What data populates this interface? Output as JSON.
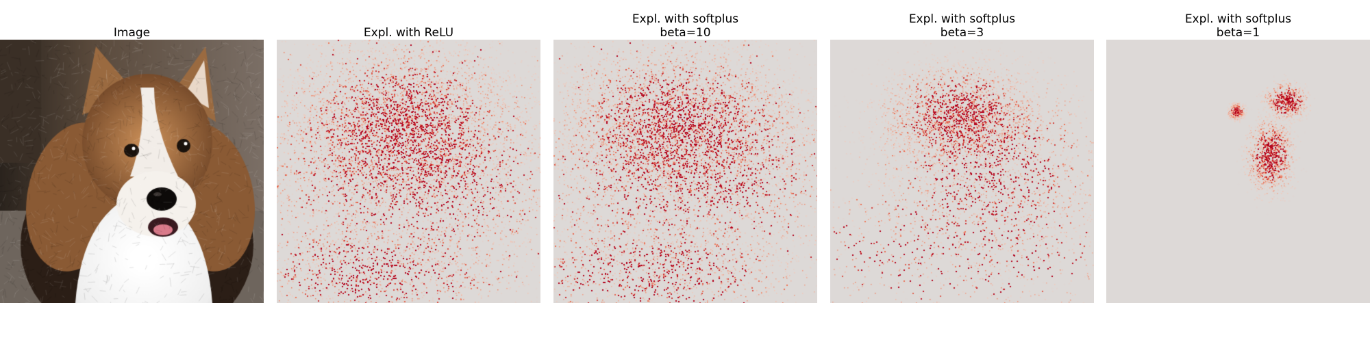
{
  "figure": {
    "panels": [
      {
        "title": "Image",
        "kind": "photo",
        "content": "sheltie dog portrait"
      },
      {
        "title": "Expl. with ReLU",
        "kind": "heatmap",
        "density": 1.0,
        "spread": "wide"
      },
      {
        "title": "Expl. with softplus\nbeta=10",
        "kind": "heatmap",
        "density": 0.95,
        "spread": "wide"
      },
      {
        "title": "Expl. with softplus\nbeta=3",
        "kind": "heatmap",
        "density": 0.55,
        "spread": "medium"
      },
      {
        "title": "Expl. with softplus\nbeta=1",
        "kind": "heatmap",
        "density": 0.2,
        "spread": "focused"
      }
    ],
    "colors": {
      "heatmap_background": "#ddd9d7",
      "heatmap_low": "#f4c8b8",
      "heatmap_mid": "#ef7a5a",
      "heatmap_high": "#b3001a"
    }
  }
}
